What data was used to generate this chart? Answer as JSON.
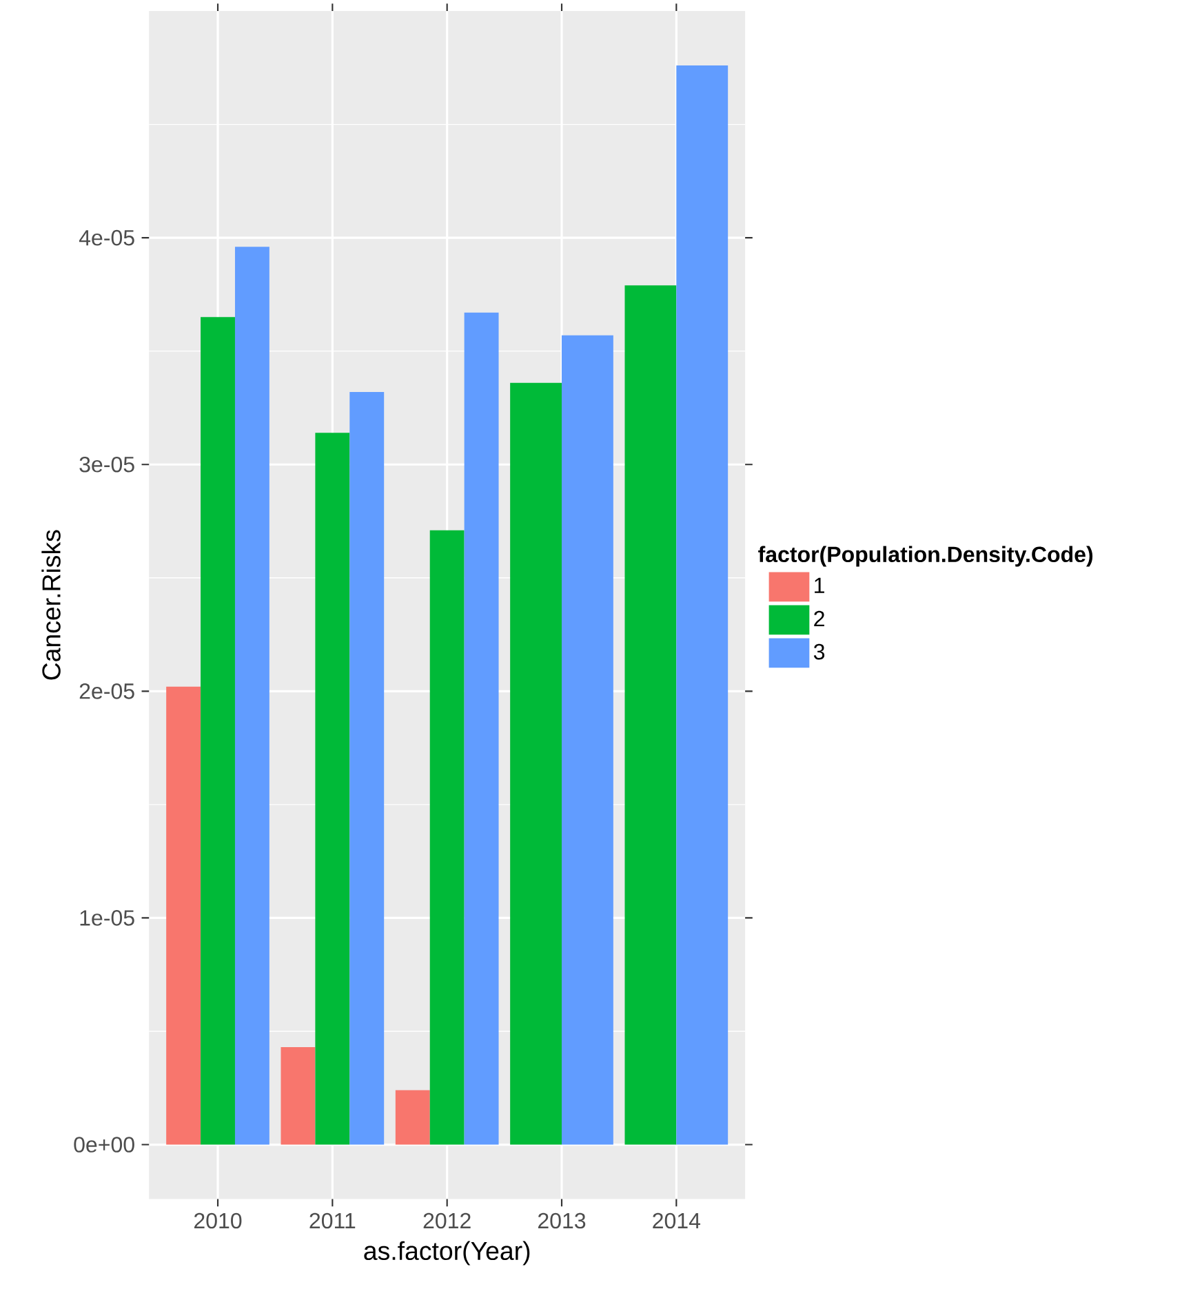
{
  "chart_data": {
    "type": "bar",
    "xlabel": "as.factor(Year)",
    "ylabel": "Cancer.Risks",
    "legend_title": "factor(Population.Density.Code)",
    "categories": [
      "2010",
      "2011",
      "2012",
      "2013",
      "2014"
    ],
    "series": [
      {
        "name": "1",
        "color": "#f8766d",
        "values": [
          2.02e-05,
          4.3e-06,
          2.4e-06,
          null,
          null
        ]
      },
      {
        "name": "2",
        "color": "#00ba38",
        "values": [
          3.65e-05,
          3.14e-05,
          2.71e-05,
          3.36e-05,
          3.79e-05
        ]
      },
      {
        "name": "3",
        "color": "#619cff",
        "values": [
          3.96e-05,
          3.32e-05,
          3.67e-05,
          3.57e-05,
          4.76e-05
        ]
      }
    ],
    "ylim": [
      -2.4e-06,
      5e-05
    ],
    "yticks": [
      {
        "value": 0,
        "label": "0e+00"
      },
      {
        "value": 1e-05,
        "label": "1e-05"
      },
      {
        "value": 2e-05,
        "label": "2e-05"
      },
      {
        "value": 3e-05,
        "label": "3e-05"
      },
      {
        "value": 4e-05,
        "label": "4e-05"
      }
    ],
    "grid": true,
    "legend": "right"
  }
}
